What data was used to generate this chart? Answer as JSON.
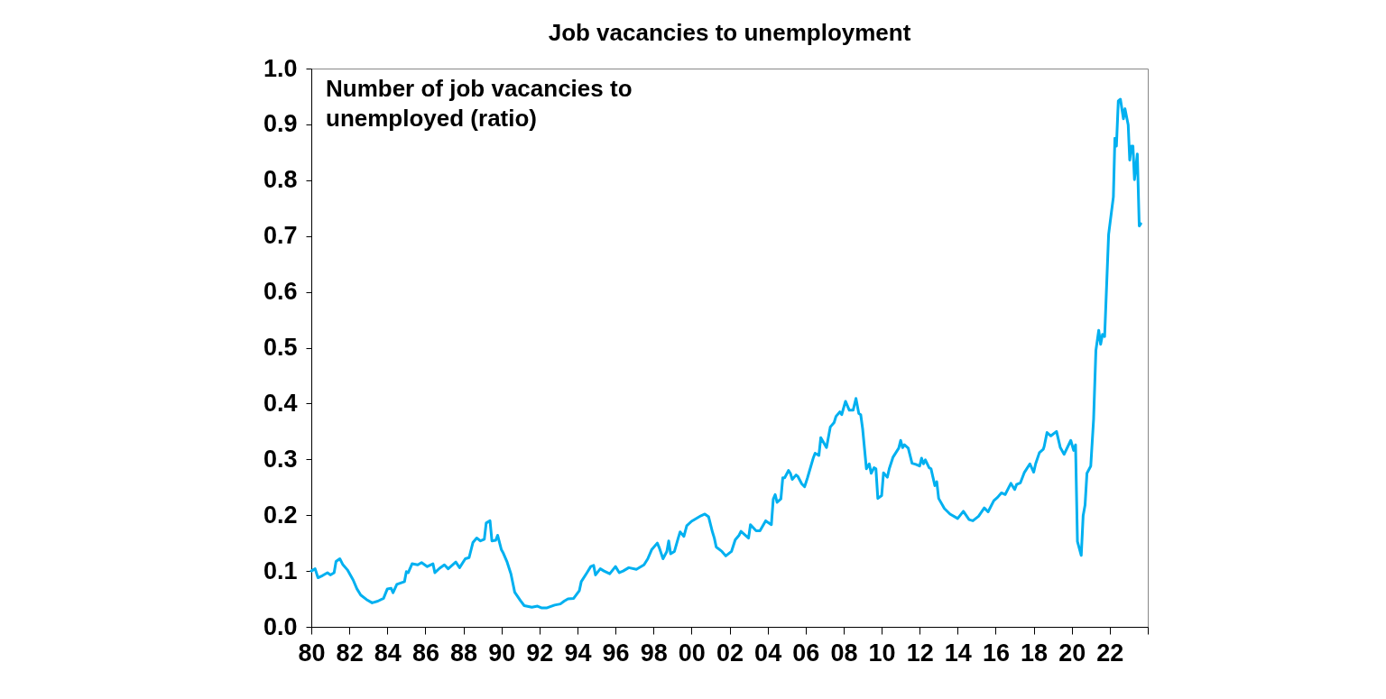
{
  "chart_data": {
    "type": "line",
    "title": "Job vacancies to unemployment",
    "annotations": [
      "Number of job vacancies to unemployed (ratio)"
    ],
    "xlim": [
      1980,
      2024
    ],
    "xticks": [
      {
        "value": 1980,
        "label": "80"
      },
      {
        "value": 1982,
        "label": "82"
      },
      {
        "value": 1984,
        "label": "84"
      },
      {
        "value": 1986,
        "label": "86"
      },
      {
        "value": 1988,
        "label": "88"
      },
      {
        "value": 1990,
        "label": "90"
      },
      {
        "value": 1992,
        "label": "92"
      },
      {
        "value": 1994,
        "label": "94"
      },
      {
        "value": 1996,
        "label": "96"
      },
      {
        "value": 1998,
        "label": "98"
      },
      {
        "value": 2000,
        "label": "00"
      },
      {
        "value": 2002,
        "label": "02"
      },
      {
        "value": 2004,
        "label": "04"
      },
      {
        "value": 2006,
        "label": "06"
      },
      {
        "value": 2008,
        "label": "08"
      },
      {
        "value": 2010,
        "label": "10"
      },
      {
        "value": 2012,
        "label": "12"
      },
      {
        "value": 2014,
        "label": "14"
      },
      {
        "value": 2016,
        "label": "16"
      },
      {
        "value": 2018,
        "label": "18"
      },
      {
        "value": 2020,
        "label": "20"
      },
      {
        "value": 2022,
        "label": "22"
      },
      {
        "value": 2024,
        "label": null
      }
    ],
    "ylim": [
      0,
      1
    ],
    "yticks": [
      {
        "value": 0,
        "label": "0.0"
      },
      0.1,
      0.2,
      0.3,
      0.4,
      0.5,
      0.6,
      0.7,
      0.8,
      0.9,
      {
        "value": 1,
        "label": "1.0"
      }
    ],
    "grid": false,
    "marker": "none",
    "line_style": "solid",
    "x": [
      1980.0,
      1980.2,
      1980.35,
      1980.6,
      1980.85,
      1981.0,
      1981.2,
      1981.3,
      1981.5,
      1981.65,
      1981.9,
      1982.2,
      1982.4,
      1982.6,
      1982.9,
      1983.2,
      1983.5,
      1983.8,
      1984.0,
      1984.2,
      1984.3,
      1984.5,
      1984.9,
      1985.0,
      1985.1,
      1985.3,
      1985.6,
      1985.8,
      1986.1,
      1986.4,
      1986.5,
      1986.75,
      1987.0,
      1987.2,
      1987.6,
      1987.8,
      1988.1,
      1988.3,
      1988.5,
      1988.7,
      1988.9,
      1989.1,
      1989.2,
      1989.4,
      1989.5,
      1989.7,
      1989.8,
      1990.0,
      1990.1,
      1990.3,
      1990.5,
      1990.7,
      1991.0,
      1991.2,
      1991.6,
      1991.9,
      1992.1,
      1992.4,
      1992.8,
      1993.1,
      1993.3,
      1993.5,
      1993.8,
      1994.1,
      1994.2,
      1994.5,
      1994.7,
      1994.85,
      1994.95,
      1995.2,
      1995.4,
      1995.7,
      1996.0,
      1996.2,
      1996.4,
      1996.7,
      1997.1,
      1997.5,
      1997.7,
      1997.9,
      1998.2,
      1998.3,
      1998.5,
      1998.7,
      1998.8,
      1998.9,
      1999.1,
      1999.3,
      1999.4,
      1999.6,
      1999.75,
      2000.0,
      2000.5,
      2000.7,
      2000.9,
      2001.1,
      2001.2,
      2001.3,
      2001.6,
      2001.8,
      2002.1,
      2002.3,
      2002.5,
      2002.6,
      2003.0,
      2003.1,
      2003.4,
      2003.6,
      2003.9,
      2004.2,
      2004.3,
      2004.4,
      2004.5,
      2004.7,
      2004.8,
      2004.9,
      2005.1,
      2005.2,
      2005.3,
      2005.5,
      2005.6,
      2005.8,
      2005.95,
      2006.1,
      2006.4,
      2006.5,
      2006.7,
      2006.8,
      2007.1,
      2007.3,
      2007.5,
      2007.6,
      2007.8,
      2007.9,
      2008.1,
      2008.3,
      2008.5,
      2008.65,
      2008.8,
      2008.9,
      2009.0,
      2009.2,
      2009.35,
      2009.45,
      2009.6,
      2009.7,
      2009.8,
      2010.0,
      2010.1,
      2010.3,
      2010.4,
      2010.6,
      2010.9,
      2011.0,
      2011.1,
      2011.2,
      2011.4,
      2011.6,
      2011.8,
      2012.0,
      2012.1,
      2012.2,
      2012.3,
      2012.5,
      2012.6,
      2012.8,
      2012.9,
      2013.0,
      2013.3,
      2013.6,
      2014.0,
      2014.3,
      2014.6,
      2014.8,
      2015.1,
      2015.4,
      2015.6,
      2015.9,
      2016.1,
      2016.3,
      2016.5,
      2016.8,
      2017.0,
      2017.1,
      2017.3,
      2017.5,
      2017.8,
      2018.0,
      2018.1,
      2018.3,
      2018.5,
      2018.55,
      2018.7,
      2018.9,
      2019.2,
      2019.4,
      2019.6,
      2019.95,
      2020.1,
      2020.2,
      2020.3,
      2020.5,
      2020.6,
      2020.7,
      2020.8,
      2021.0,
      2021.15,
      2021.27,
      2021.42,
      2021.52,
      2021.62,
      2021.73,
      2021.94,
      2022.19,
      2022.27,
      2022.35,
      2022.45,
      2022.56,
      2022.72,
      2022.8,
      2022.97,
      2023.05,
      2023.14,
      2023.22,
      2023.3,
      2023.45,
      2023.55,
      2023.63
    ],
    "series": [
      {
        "color": "#00b0f0",
        "values": [
          0.1,
          0.104,
          0.088,
          0.092,
          0.097,
          0.093,
          0.097,
          0.117,
          0.122,
          0.112,
          0.102,
          0.084,
          0.068,
          0.057,
          0.049,
          0.043,
          0.046,
          0.051,
          0.068,
          0.069,
          0.061,
          0.076,
          0.081,
          0.099,
          0.097,
          0.113,
          0.111,
          0.115,
          0.108,
          0.113,
          0.097,
          0.105,
          0.111,
          0.104,
          0.116,
          0.106,
          0.122,
          0.124,
          0.151,
          0.159,
          0.154,
          0.157,
          0.186,
          0.19,
          0.154,
          0.155,
          0.164,
          0.138,
          0.132,
          0.116,
          0.095,
          0.062,
          0.047,
          0.038,
          0.035,
          0.037,
          0.034,
          0.034,
          0.039,
          0.041,
          0.046,
          0.05,
          0.051,
          0.065,
          0.081,
          0.097,
          0.108,
          0.11,
          0.093,
          0.104,
          0.1,
          0.095,
          0.108,
          0.097,
          0.1,
          0.106,
          0.103,
          0.111,
          0.122,
          0.138,
          0.15,
          0.142,
          0.122,
          0.135,
          0.154,
          0.131,
          0.135,
          0.159,
          0.17,
          0.162,
          0.181,
          0.189,
          0.199,
          0.202,
          0.197,
          0.17,
          0.159,
          0.143,
          0.135,
          0.127,
          0.135,
          0.156,
          0.164,
          0.171,
          0.159,
          0.183,
          0.172,
          0.172,
          0.19,
          0.183,
          0.229,
          0.237,
          0.223,
          0.229,
          0.267,
          0.267,
          0.28,
          0.275,
          0.264,
          0.272,
          0.269,
          0.256,
          0.251,
          0.267,
          0.302,
          0.311,
          0.307,
          0.339,
          0.321,
          0.358,
          0.366,
          0.377,
          0.385,
          0.38,
          0.404,
          0.388,
          0.388,
          0.409,
          0.382,
          0.38,
          0.355,
          0.283,
          0.292,
          0.275,
          0.285,
          0.283,
          0.23,
          0.235,
          0.276,
          0.268,
          0.283,
          0.304,
          0.32,
          0.334,
          0.321,
          0.326,
          0.32,
          0.293,
          0.291,
          0.288,
          0.302,
          0.292,
          0.299,
          0.285,
          0.283,
          0.253,
          0.26,
          0.23,
          0.212,
          0.202,
          0.194,
          0.207,
          0.192,
          0.19,
          0.198,
          0.213,
          0.206,
          0.226,
          0.232,
          0.24,
          0.237,
          0.257,
          0.246,
          0.255,
          0.258,
          0.276,
          0.292,
          0.277,
          0.292,
          0.312,
          0.318,
          0.323,
          0.348,
          0.342,
          0.35,
          0.321,
          0.309,
          0.334,
          0.316,
          0.326,
          0.153,
          0.128,
          0.199,
          0.218,
          0.275,
          0.288,
          0.372,
          0.495,
          0.531,
          0.506,
          0.524,
          0.52,
          0.703,
          0.77,
          0.875,
          0.861,
          0.942,
          0.945,
          0.91,
          0.928,
          0.899,
          0.836,
          0.861,
          0.861,
          0.801,
          0.847,
          0.718,
          0.722
        ]
      }
    ]
  }
}
